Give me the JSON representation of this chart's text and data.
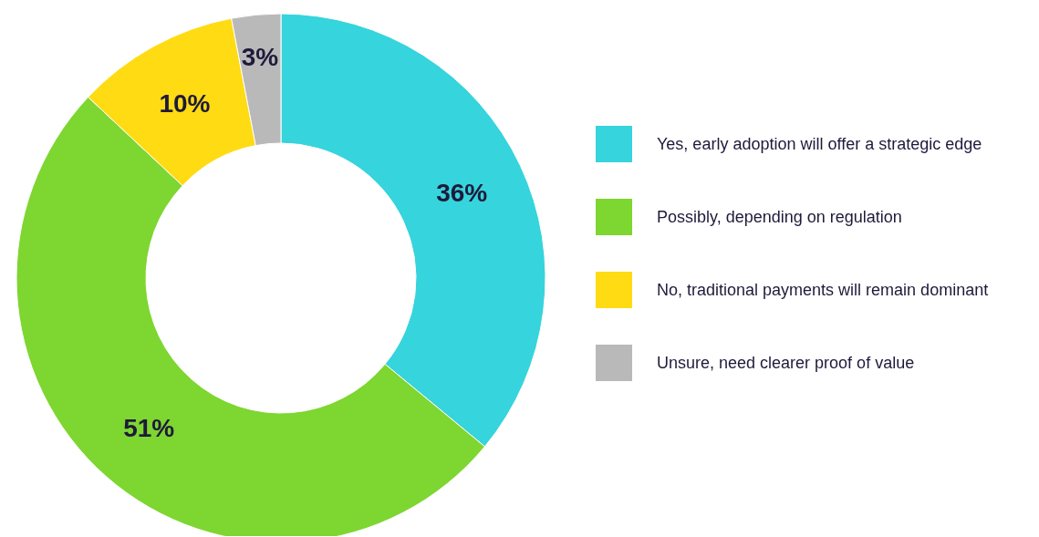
{
  "chart_data": {
    "type": "donut",
    "categories": [
      "Yes, early adoption will offer a strategic edge",
      "Possibly, depending on regulation",
      "No, traditional payments will remain dominant",
      "Unsure, need clearer proof of value"
    ],
    "values": [
      36,
      51,
      10,
      3
    ],
    "colors": [
      "#36d4dc",
      "#7ed631",
      "#ffdb13",
      "#b9b9b9"
    ],
    "value_labels": [
      "36%",
      "51%",
      "10%",
      "3%"
    ],
    "legend": "right"
  }
}
